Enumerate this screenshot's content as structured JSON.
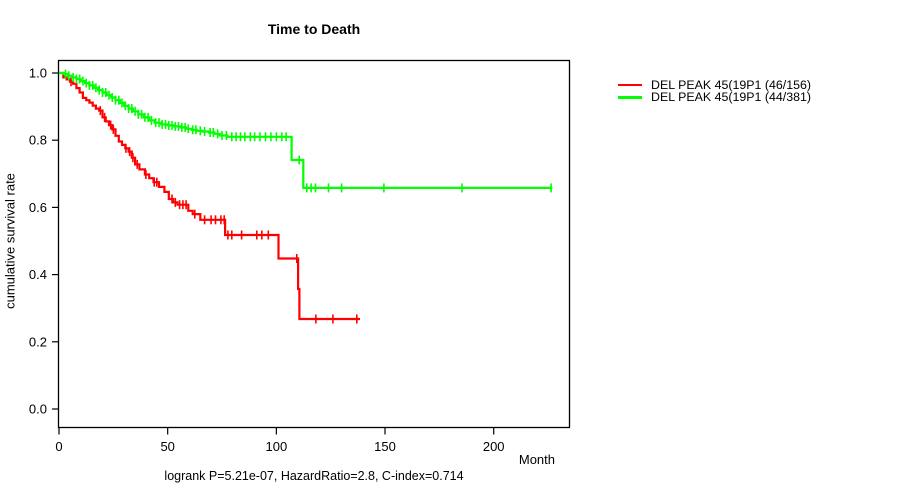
{
  "chart_data": {
    "type": "line",
    "subtype": "kaplan-meier-step",
    "title": "Time to Death",
    "xlabel": "Month",
    "ylabel": "cumulative survival rate",
    "footnote": "logrank P=5.21e-07, HazardRatio=2.8, C-index=0.714",
    "xlim": [
      0,
      234
    ],
    "ylim": [
      0,
      1
    ],
    "x_ticks": [
      0,
      50,
      100,
      150,
      200
    ],
    "y_tick_labels": [
      "0.0",
      "0.2",
      "0.4",
      "0.6",
      "0.8",
      "1.0"
    ],
    "grid": false,
    "legend_position": "right-outside",
    "frame_color": "#000000",
    "series": [
      {
        "name": "DEL PEAK 45(19P1 (46/156)",
        "color": "#ff0000",
        "events": "46/156",
        "end_time": 138.5,
        "steps": [
          [
            0,
            1.0
          ],
          [
            2,
            0.987
          ],
          [
            3.5,
            0.981
          ],
          [
            5,
            0.974
          ],
          [
            6.5,
            0.968
          ],
          [
            8,
            0.955
          ],
          [
            9.5,
            0.942
          ],
          [
            11,
            0.926
          ],
          [
            12.5,
            0.919
          ],
          [
            14,
            0.912
          ],
          [
            15.5,
            0.903
          ],
          [
            17,
            0.894
          ],
          [
            18.5,
            0.888
          ],
          [
            20,
            0.868
          ],
          [
            21.5,
            0.856
          ],
          [
            23,
            0.845
          ],
          [
            24.5,
            0.832
          ],
          [
            26,
            0.813
          ],
          [
            27.5,
            0.796
          ],
          [
            29,
            0.786
          ],
          [
            30.5,
            0.776
          ],
          [
            32,
            0.766
          ],
          [
            33.5,
            0.748
          ],
          [
            35,
            0.728
          ],
          [
            37,
            0.713
          ],
          [
            39.5,
            0.698
          ],
          [
            41.5,
            0.687
          ],
          [
            43.5,
            0.675
          ],
          [
            46,
            0.661
          ],
          [
            48.5,
            0.646
          ],
          [
            50.5,
            0.625
          ],
          [
            52.5,
            0.615
          ],
          [
            54.5,
            0.608
          ],
          [
            59.5,
            0.59
          ],
          [
            61.5,
            0.58
          ],
          [
            65,
            0.563
          ],
          [
            76.4,
            0.518
          ],
          [
            101,
            0.448
          ],
          [
            110,
            0.357
          ],
          [
            110.6,
            0.268
          ]
        ],
        "censor_times": [
          5.5,
          19,
          21,
          23.8,
          25,
          30.8,
          32.5,
          34,
          36,
          40,
          43.8,
          45,
          52,
          53.5,
          55.5,
          57,
          58.5,
          62.5,
          67,
          70,
          72,
          74.5,
          76,
          77.7,
          79.5,
          84,
          91,
          93.3,
          96.3,
          109.4,
          118.2,
          126,
          137
        ]
      },
      {
        "name": "DEL PEAK 45(19P1 (44/381)",
        "color": "#00ff00",
        "events": "44/381",
        "end_time": 227,
        "steps": [
          [
            0,
            1.0
          ],
          [
            2,
            0.997
          ],
          [
            4,
            0.992
          ],
          [
            6,
            0.987
          ],
          [
            8,
            0.982
          ],
          [
            10,
            0.976
          ],
          [
            12,
            0.97
          ],
          [
            14,
            0.963
          ],
          [
            16,
            0.956
          ],
          [
            18,
            0.949
          ],
          [
            20,
            0.942
          ],
          [
            22,
            0.934
          ],
          [
            24,
            0.927
          ],
          [
            26,
            0.919
          ],
          [
            28,
            0.911
          ],
          [
            30,
            0.902
          ],
          [
            32,
            0.894
          ],
          [
            34,
            0.886
          ],
          [
            36.5,
            0.877
          ],
          [
            39,
            0.868
          ],
          [
            41.5,
            0.859
          ],
          [
            44,
            0.852
          ],
          [
            47,
            0.847
          ],
          [
            50,
            0.844
          ],
          [
            53,
            0.841
          ],
          [
            56,
            0.838
          ],
          [
            58.5,
            0.834
          ],
          [
            61,
            0.831
          ],
          [
            63.5,
            0.828
          ],
          [
            66,
            0.826
          ],
          [
            69,
            0.823
          ],
          [
            71.5,
            0.819
          ],
          [
            74,
            0.814
          ],
          [
            77.5,
            0.81
          ],
          [
            107,
            0.741
          ],
          [
            112.4,
            0.658
          ]
        ],
        "censor_times": [
          3,
          4.5,
          6.5,
          8,
          9.5,
          11,
          12.5,
          14,
          15.5,
          17,
          18.5,
          20,
          21.5,
          23,
          24.5,
          26,
          27.5,
          29,
          30.5,
          32,
          33.5,
          35,
          36.5,
          38,
          39.5,
          41,
          42.5,
          44.5,
          46,
          47.5,
          49,
          50.5,
          52,
          53.5,
          55,
          56.5,
          58,
          59.5,
          61.5,
          63,
          65,
          67,
          69.5,
          71,
          73,
          75,
          77,
          79.5,
          81.5,
          83.5,
          85.5,
          88,
          90,
          92.5,
          95,
          97.5,
          100,
          102.5,
          104.5,
          110.5,
          114,
          116,
          118,
          124,
          130,
          149.5,
          185.4,
          226.4
        ]
      }
    ]
  }
}
